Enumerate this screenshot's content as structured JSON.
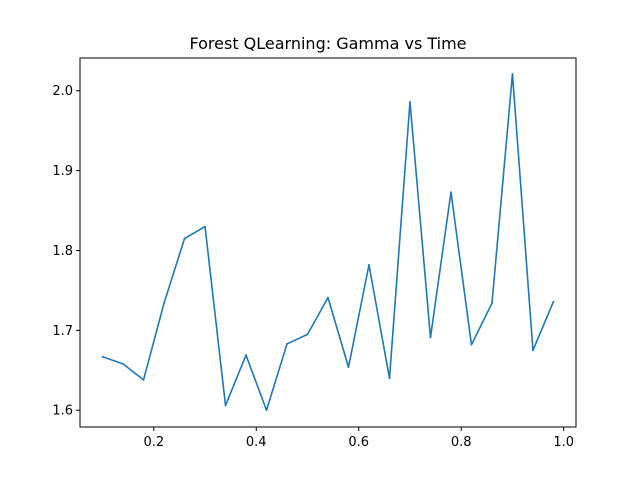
{
  "chart_data": {
    "type": "line",
    "title": "Forest QLearning: Gamma vs Time",
    "xlabel": "",
    "ylabel": "",
    "xlim": [
      0.056,
      1.024
    ],
    "ylim": [
      1.579,
      2.041
    ],
    "xticks": [
      0.2,
      0.4,
      0.6,
      0.8,
      1.0
    ],
    "xtick_labels": [
      "0.2",
      "0.4",
      "0.6",
      "0.8",
      "1.0"
    ],
    "yticks": [
      1.6,
      1.7,
      1.8,
      1.9,
      2.0
    ],
    "ytick_labels": [
      "1.6",
      "1.7",
      "1.8",
      "1.9",
      "2.0"
    ],
    "grid": false,
    "series": [
      {
        "color": "#1f77b4",
        "x": [
          0.1,
          0.14,
          0.18,
          0.22,
          0.26,
          0.3,
          0.34,
          0.38,
          0.42,
          0.46,
          0.5,
          0.54,
          0.58,
          0.62,
          0.66,
          0.7,
          0.74,
          0.78,
          0.82,
          0.86,
          0.9,
          0.94,
          0.98
        ],
        "y": [
          1.667,
          1.658,
          1.638,
          1.734,
          1.815,
          1.83,
          1.606,
          1.669,
          1.6,
          1.683,
          1.695,
          1.741,
          1.654,
          1.782,
          1.64,
          1.986,
          1.691,
          1.873,
          1.682,
          1.734,
          2.021,
          1.675,
          1.736
        ]
      }
    ]
  }
}
